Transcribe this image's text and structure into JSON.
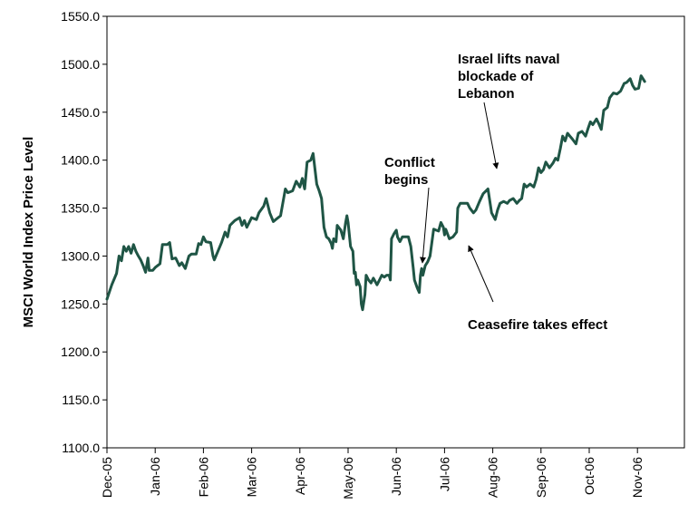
{
  "chart_data": {
    "type": "line",
    "title": "",
    "xlabel": "",
    "ylabel": "MSCI World Index Price Level",
    "ylim": [
      1100,
      1550
    ],
    "yticks": [
      "1100.0",
      "1150.0",
      "1200.0",
      "1250.0",
      "1300.0",
      "1350.0",
      "1400.0",
      "1450.0",
      "1500.0",
      "1550.0"
    ],
    "xticks": [
      "Dec-05",
      "Jan-06",
      "Feb-06",
      "Mar-06",
      "Apr-06",
      "May-06",
      "Jun-06",
      "Jul-06",
      "Aug-06",
      "Sep-06",
      "Oct-06",
      "Nov-06"
    ],
    "grid": false,
    "legend": "none",
    "series": [
      {
        "color": "#1f5545",
        "points": [
          [
            0.0,
            1255
          ],
          [
            0.2,
            1270
          ],
          [
            0.4,
            1282
          ],
          [
            0.5,
            1300
          ],
          [
            0.6,
            1295
          ],
          [
            0.7,
            1310
          ],
          [
            0.8,
            1305
          ],
          [
            0.9,
            1310
          ],
          [
            1.0,
            1303
          ],
          [
            1.1,
            1312
          ],
          [
            1.2,
            1305
          ],
          [
            1.3,
            1300
          ],
          [
            1.4,
            1296
          ],
          [
            1.5,
            1290
          ],
          [
            1.6,
            1283
          ],
          [
            1.7,
            1298
          ],
          [
            1.75,
            1285
          ],
          [
            1.9,
            1285
          ],
          [
            2.0,
            1288
          ],
          [
            2.2,
            1292
          ],
          [
            2.3,
            1312
          ],
          [
            2.5,
            1312
          ],
          [
            2.6,
            1314
          ],
          [
            2.7,
            1297
          ],
          [
            2.85,
            1298
          ],
          [
            3.0,
            1290
          ],
          [
            3.1,
            1293
          ],
          [
            3.25,
            1287
          ],
          [
            3.4,
            1300
          ],
          [
            3.5,
            1302
          ],
          [
            3.7,
            1302
          ],
          [
            3.8,
            1313
          ],
          [
            3.9,
            1312
          ],
          [
            4.0,
            1320
          ],
          [
            4.1,
            1315
          ],
          [
            4.3,
            1314
          ],
          [
            4.4,
            1300
          ],
          [
            4.45,
            1296
          ],
          [
            4.6,
            1305
          ],
          [
            4.75,
            1314
          ],
          [
            4.9,
            1325
          ],
          [
            5.0,
            1320
          ],
          [
            5.1,
            1332
          ],
          [
            5.3,
            1337
          ],
          [
            5.5,
            1340
          ],
          [
            5.6,
            1332
          ],
          [
            5.7,
            1337
          ],
          [
            5.8,
            1330
          ],
          [
            6.0,
            1340
          ],
          [
            6.2,
            1338
          ],
          [
            6.3,
            1345
          ],
          [
            6.5,
            1352
          ],
          [
            6.6,
            1360
          ],
          [
            6.75,
            1345
          ],
          [
            6.9,
            1336
          ],
          [
            7.0,
            1338
          ],
          [
            7.2,
            1342
          ],
          [
            7.4,
            1370
          ],
          [
            7.5,
            1366
          ],
          [
            7.7,
            1368
          ],
          [
            7.85,
            1378
          ],
          [
            8.0,
            1372
          ],
          [
            8.1,
            1381
          ],
          [
            8.2,
            1370
          ],
          [
            8.3,
            1398
          ],
          [
            8.45,
            1400
          ],
          [
            8.55,
            1407
          ],
          [
            8.7,
            1375
          ],
          [
            8.8,
            1368
          ],
          [
            8.9,
            1360
          ],
          [
            9.0,
            1330
          ],
          [
            9.1,
            1320
          ],
          [
            9.2,
            1318
          ],
          [
            9.3,
            1313
          ],
          [
            9.35,
            1308
          ],
          [
            9.4,
            1318
          ],
          [
            9.5,
            1315
          ],
          [
            9.55,
            1332
          ],
          [
            9.7,
            1327
          ],
          [
            9.8,
            1318
          ],
          [
            9.9,
            1335
          ],
          [
            9.95,
            1342
          ],
          [
            10.0,
            1335
          ],
          [
            10.1,
            1310
          ],
          [
            10.2,
            1305
          ],
          [
            10.25,
            1282
          ],
          [
            10.3,
            1283
          ],
          [
            10.35,
            1270
          ],
          [
            10.4,
            1275
          ],
          [
            10.5,
            1268
          ],
          [
            10.55,
            1250
          ],
          [
            10.6,
            1244
          ],
          [
            10.7,
            1260
          ],
          [
            10.75,
            1280
          ],
          [
            10.85,
            1275
          ],
          [
            10.95,
            1272
          ],
          [
            11.05,
            1277
          ],
          [
            11.2,
            1270
          ],
          [
            11.3,
            1275
          ],
          [
            11.4,
            1280
          ],
          [
            11.5,
            1278
          ],
          [
            11.6,
            1280
          ],
          [
            11.7,
            1280
          ],
          [
            11.75,
            1275
          ],
          [
            11.8,
            1318
          ],
          [
            11.9,
            1323
          ],
          [
            12.0,
            1327
          ],
          [
            12.05,
            1320
          ],
          [
            12.15,
            1315
          ],
          [
            12.25,
            1320
          ],
          [
            12.4,
            1320
          ],
          [
            12.5,
            1320
          ],
          [
            12.6,
            1310
          ],
          [
            12.7,
            1288
          ],
          [
            12.75,
            1275
          ],
          [
            12.85,
            1268
          ],
          [
            12.9,
            1265
          ],
          [
            12.95,
            1262
          ],
          [
            13.0,
            1280
          ],
          [
            13.05,
            1287
          ],
          [
            13.1,
            1280
          ],
          [
            13.2,
            1290
          ],
          [
            13.3,
            1294
          ],
          [
            13.4,
            1300
          ],
          [
            13.55,
            1328
          ],
          [
            13.65,
            1327
          ],
          [
            13.75,
            1326
          ],
          [
            13.85,
            1335
          ],
          [
            13.95,
            1330
          ],
          [
            14.0,
            1322
          ],
          [
            14.05,
            1328
          ],
          [
            14.2,
            1318
          ],
          [
            14.35,
            1320
          ],
          [
            14.5,
            1325
          ],
          [
            14.55,
            1350
          ],
          [
            14.65,
            1355
          ],
          [
            14.8,
            1355
          ],
          [
            14.95,
            1355
          ],
          [
            15.05,
            1350
          ],
          [
            15.2,
            1345
          ],
          [
            15.3,
            1348
          ],
          [
            15.45,
            1357
          ],
          [
            15.6,
            1365
          ],
          [
            15.8,
            1370
          ],
          [
            15.95,
            1345
          ],
          [
            16.1,
            1338
          ],
          [
            16.2,
            1348
          ],
          [
            16.3,
            1355
          ],
          [
            16.45,
            1357
          ],
          [
            16.6,
            1355
          ],
          [
            16.7,
            1358
          ],
          [
            16.85,
            1360
          ],
          [
            17.0,
            1355
          ],
          [
            17.1,
            1358
          ],
          [
            17.2,
            1360
          ],
          [
            17.3,
            1375
          ],
          [
            17.4,
            1372
          ],
          [
            17.55,
            1375
          ],
          [
            17.7,
            1372
          ],
          [
            17.8,
            1380
          ],
          [
            17.9,
            1392
          ],
          [
            18.0,
            1387
          ],
          [
            18.1,
            1390
          ],
          [
            18.2,
            1398
          ],
          [
            18.35,
            1392
          ],
          [
            18.5,
            1397
          ],
          [
            18.6,
            1402
          ],
          [
            18.7,
            1400
          ],
          [
            18.8,
            1412
          ],
          [
            18.9,
            1425
          ],
          [
            19.0,
            1420
          ],
          [
            19.1,
            1428
          ],
          [
            19.2,
            1425
          ],
          [
            19.3,
            1422
          ],
          [
            19.45,
            1417
          ],
          [
            19.55,
            1428
          ],
          [
            19.7,
            1430
          ],
          [
            19.85,
            1425
          ],
          [
            19.95,
            1433
          ],
          [
            20.05,
            1440
          ],
          [
            20.15,
            1437
          ],
          [
            20.3,
            1443
          ],
          [
            20.4,
            1438
          ],
          [
            20.5,
            1432
          ],
          [
            20.6,
            1452
          ],
          [
            20.75,
            1455
          ],
          [
            20.85,
            1465
          ],
          [
            21.0,
            1470
          ],
          [
            21.15,
            1469
          ],
          [
            21.3,
            1472
          ],
          [
            21.45,
            1480
          ],
          [
            21.55,
            1481
          ],
          [
            21.7,
            1485
          ],
          [
            21.8,
            1478
          ],
          [
            21.9,
            1474
          ],
          [
            22.05,
            1475
          ],
          [
            22.15,
            1488
          ],
          [
            22.3,
            1482
          ]
        ]
      }
    ],
    "annotations": [
      {
        "lines": [
          "Israel lifts naval",
          "blockade of",
          "Lebanon"
        ]
      },
      {
        "lines": [
          "Conflict",
          "begins"
        ]
      },
      {
        "lines": [
          "Ceasefire takes effect"
        ]
      }
    ]
  }
}
